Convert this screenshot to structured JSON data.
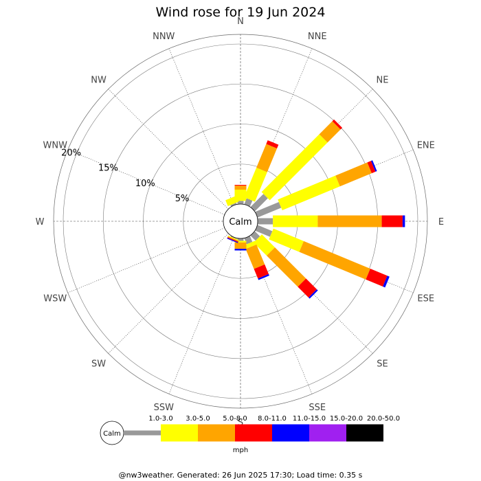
{
  "chart_data": {
    "type": "wind-rose",
    "title": "Wind rose for 19 Jun 2024",
    "directions": [
      "N",
      "NNE",
      "NE",
      "ENE",
      "E",
      "ESE",
      "SE",
      "SSE",
      "S",
      "SSW",
      "SW",
      "WSW",
      "W",
      "WNW",
      "NW",
      "NNW"
    ],
    "ring_labels": [
      "5%",
      "10%",
      "15%",
      "20%"
    ],
    "ring_values": [
      5,
      10,
      15,
      20
    ],
    "calm_label": "Calm",
    "units": "mph",
    "bins": [
      {
        "label": "1.0-3.0",
        "color": "#999999"
      },
      {
        "label": "3.0-5.0",
        "color": "#ffff00"
      },
      {
        "label": "5.0-8.0",
        "color": "#ffa500"
      },
      {
        "label": "8.0-11.0",
        "color": "#ff0000"
      },
      {
        "label": "11.0-15.0",
        "color": "#0000ff"
      },
      {
        "label": "15.0-20.0",
        "color": "#a020f0"
      },
      {
        "label": "20.0-50.0",
        "color": "#000000"
      }
    ],
    "series_note": "values are percent of time per direction per speed bin, cumulative from the calm circle",
    "data": {
      "N": [
        0.4,
        1.4,
        0.5,
        0.1,
        0,
        0,
        0
      ],
      "NNE": [
        0.8,
        4.0,
        3.2,
        0.5,
        0,
        0,
        0
      ],
      "NE": [
        2.3,
        10.2,
        2.3,
        0.3,
        0,
        0,
        0
      ],
      "ENE": [
        3.2,
        7.8,
        4.3,
        0.5,
        0.2,
        0,
        0
      ],
      "E": [
        1.9,
        5.6,
        8.0,
        2.6,
        0.3,
        0,
        0
      ],
      "ESE": [
        2.0,
        4.1,
        9.0,
        2.3,
        0.3,
        0,
        0
      ],
      "SE": [
        0.9,
        2.3,
        5.5,
        1.9,
        0.2,
        0,
        0
      ],
      "SSE": [
        0.8,
        0.5,
        2.7,
        1.3,
        0.2,
        0,
        0
      ],
      "S": [
        0.3,
        0.2,
        0.8,
        0,
        0.2,
        0,
        0
      ],
      "SSW": [
        0.1,
        0.1,
        0.1,
        0.1,
        0.1,
        0,
        0
      ],
      "SW": [
        0,
        0,
        0,
        0,
        0,
        0,
        0
      ],
      "WSW": [
        0,
        0,
        0,
        0,
        0,
        0,
        0
      ],
      "W": [
        0,
        0,
        0,
        0,
        0,
        0,
        0
      ],
      "WNW": [
        0,
        0,
        0,
        0,
        0,
        0,
        0
      ],
      "NW": [
        0,
        0,
        0,
        0,
        0,
        0,
        0
      ],
      "NNW": [
        0.2,
        0.8,
        0,
        0,
        0,
        0,
        0
      ]
    }
  },
  "footer": "@nw3weather. Generated: 26 Jun 2025 17:30; Load time: 0.35 s"
}
